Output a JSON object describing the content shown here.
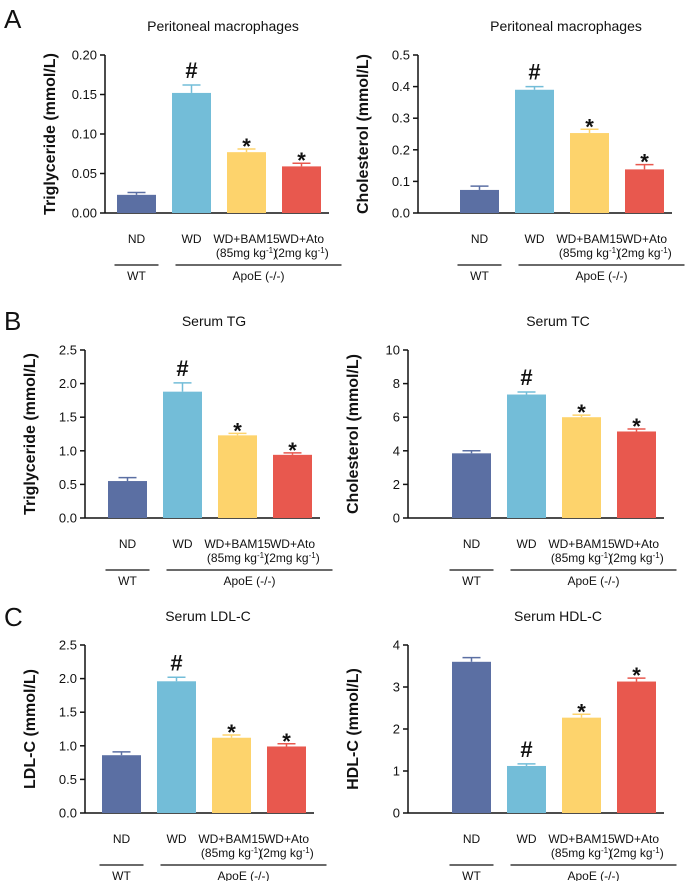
{
  "figure": {
    "panel_letters": [
      "A",
      "B",
      "C"
    ]
  },
  "chart_data": [
    {
      "type": "bar",
      "panel": "A",
      "title": "Peritoneal macrophages",
      "ylabel": "Triglyceride (mmol/L)",
      "ylim": [
        0,
        0.2
      ],
      "yticks": [
        "0.00",
        "0.05",
        "0.10",
        "0.15",
        "0.20"
      ],
      "categories": [
        "ND",
        "WD",
        "WD+BAM15",
        "WD+Ato"
      ],
      "category_sublabels": [
        "",
        "",
        "(85mg kg-1)",
        "(2mg kg-1)"
      ],
      "values": [
        0.023,
        0.152,
        0.077,
        0.059
      ],
      "errors": [
        0.003,
        0.01,
        0.004,
        0.004
      ],
      "markers": [
        "",
        "#",
        "*",
        "*"
      ],
      "colors": [
        "#5b6fa3",
        "#73bdd8",
        "#fdd36c",
        "#e8584e"
      ],
      "groups": [
        "WT",
        "ApoE (-/-)"
      ]
    },
    {
      "type": "bar",
      "panel": "A",
      "title": "Peritoneal macrophages",
      "ylabel": "Cholesterol (mmol/L)",
      "ylim": [
        0,
        0.5
      ],
      "yticks": [
        "0.0",
        "0.1",
        "0.2",
        "0.3",
        "0.4",
        "0.5"
      ],
      "categories": [
        "ND",
        "WD",
        "WD+BAM15",
        "WD+Ato"
      ],
      "category_sublabels": [
        "",
        "",
        "(85mg kg-1)",
        "(2mg kg-1)"
      ],
      "values": [
        0.073,
        0.39,
        0.253,
        0.138
      ],
      "errors": [
        0.012,
        0.01,
        0.012,
        0.015
      ],
      "markers": [
        "",
        "#",
        "*",
        "*"
      ],
      "colors": [
        "#5b6fa3",
        "#73bdd8",
        "#fdd36c",
        "#e8584e"
      ],
      "groups": [
        "WT",
        "ApoE (-/-)"
      ]
    },
    {
      "type": "bar",
      "panel": "B",
      "title": "Serum TG",
      "ylabel": "Triglyceride (mmol/L)",
      "ylim": [
        0,
        2.5
      ],
      "yticks": [
        "0.0",
        "0.5",
        "1.0",
        "1.5",
        "2.0",
        "2.5"
      ],
      "categories": [
        "ND",
        "WD",
        "WD+BAM15",
        "WD+Ato"
      ],
      "category_sublabels": [
        "",
        "",
        "(85mg kg-1)",
        "(2mg kg-1)"
      ],
      "values": [
        0.55,
        1.88,
        1.23,
        0.94
      ],
      "errors": [
        0.05,
        0.13,
        0.03,
        0.03
      ],
      "markers": [
        "",
        "#",
        "*",
        "*"
      ],
      "colors": [
        "#5b6fa3",
        "#73bdd8",
        "#fdd36c",
        "#e8584e"
      ],
      "groups": [
        "WT",
        "ApoE (-/-)"
      ]
    },
    {
      "type": "bar",
      "panel": "B",
      "title": "Serum TC",
      "ylabel": "Cholesterol (mmol/L)",
      "ylim": [
        0,
        10
      ],
      "yticks": [
        "0",
        "2",
        "4",
        "6",
        "8",
        "10"
      ],
      "categories": [
        "ND",
        "WD",
        "WD+BAM15",
        "WD+Ato"
      ],
      "category_sublabels": [
        "",
        "",
        "(85mg kg-1)",
        "(2mg kg-1)"
      ],
      "values": [
        3.85,
        7.35,
        6.0,
        5.15
      ],
      "errors": [
        0.15,
        0.15,
        0.12,
        0.15
      ],
      "markers": [
        "",
        "#",
        "*",
        "*"
      ],
      "colors": [
        "#5b6fa3",
        "#73bdd8",
        "#fdd36c",
        "#e8584e"
      ],
      "groups": [
        "WT",
        "ApoE (-/-)"
      ]
    },
    {
      "type": "bar",
      "panel": "C",
      "title": "Serum LDL-C",
      "ylabel": "LDL-C (mmol/L)",
      "ylim": [
        0,
        2.5
      ],
      "yticks": [
        "0.0",
        "0.5",
        "1.0",
        "1.5",
        "2.0",
        "2.5"
      ],
      "categories": [
        "ND",
        "WD",
        "WD+BAM15",
        "WD+Ato"
      ],
      "category_sublabels": [
        "",
        "",
        "(85mg kg-1)",
        "(2mg kg-1)"
      ],
      "values": [
        0.86,
        1.96,
        1.12,
        0.99
      ],
      "errors": [
        0.05,
        0.06,
        0.04,
        0.04
      ],
      "markers": [
        "",
        "#",
        "*",
        "*"
      ],
      "colors": [
        "#5b6fa3",
        "#73bdd8",
        "#fdd36c",
        "#e8584e"
      ],
      "groups": [
        "WT",
        "ApoE (-/-)"
      ]
    },
    {
      "type": "bar",
      "panel": "C",
      "title": "Serum HDL-C",
      "ylabel": "HDL-C (mmol/L)",
      "ylim": [
        0,
        4
      ],
      "yticks": [
        "0",
        "1",
        "2",
        "3",
        "4"
      ],
      "categories": [
        "ND",
        "WD",
        "WD+BAM15",
        "WD+Ato"
      ],
      "category_sublabels": [
        "",
        "",
        "(85mg kg-1)",
        "(2mg kg-1)"
      ],
      "values": [
        3.6,
        1.12,
        2.27,
        3.13
      ],
      "errors": [
        0.1,
        0.05,
        0.08,
        0.08
      ],
      "markers": [
        "",
        "#",
        "*",
        "*"
      ],
      "colors": [
        "#5b6fa3",
        "#73bdd8",
        "#fdd36c",
        "#e8584e"
      ],
      "groups": [
        "WT",
        "ApoE (-/-)"
      ]
    }
  ]
}
